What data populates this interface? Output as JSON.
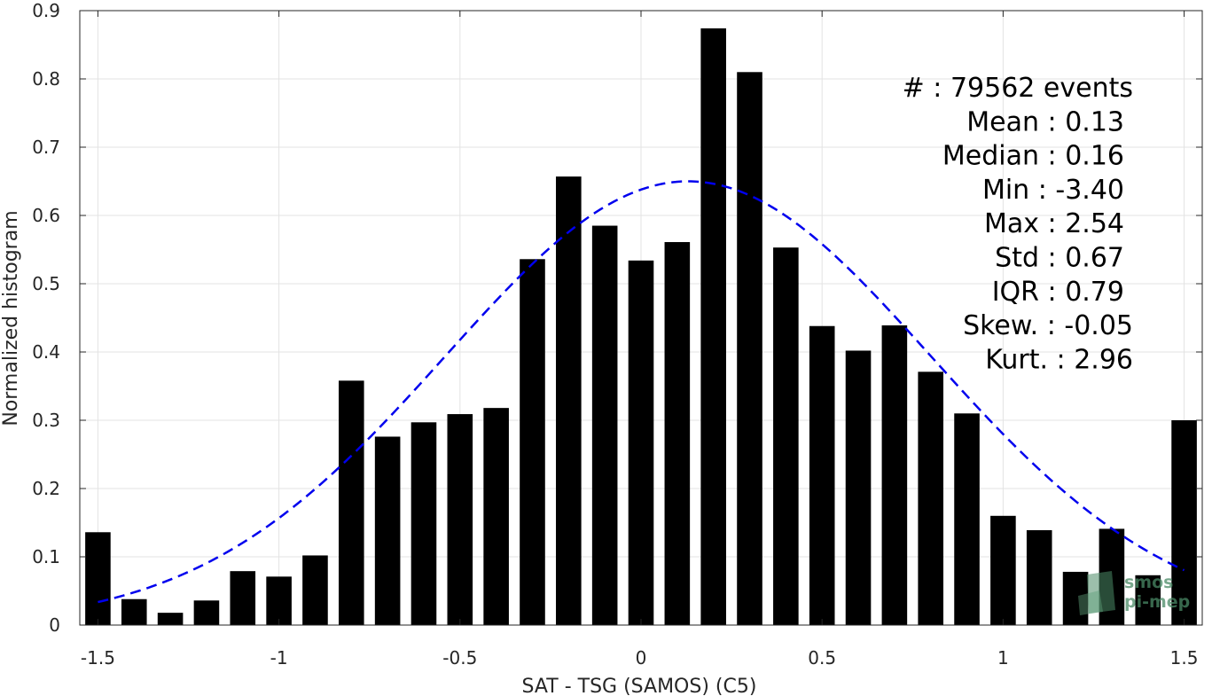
{
  "chart_data": {
    "type": "bar",
    "xlabel": "SAT - TSG (SAMOS) (C5)",
    "ylabel": "Normalized histogram",
    "xlim": [
      -1.55,
      1.55
    ],
    "ylim": [
      0,
      0.9
    ],
    "xticks": [
      -1.5,
      -1,
      -0.5,
      0,
      0.5,
      1,
      1.5
    ],
    "xtick_labels": [
      "-1.5",
      "-1",
      "-0.5",
      "0",
      "0.5",
      "1",
      "1.5"
    ],
    "yticks": [
      0,
      0.1,
      0.2,
      0.3,
      0.4,
      0.5,
      0.6,
      0.7,
      0.8,
      0.9
    ],
    "ytick_labels": [
      "0",
      "0.1",
      "0.2",
      "0.3",
      "0.4",
      "0.5",
      "0.6",
      "0.7",
      "0.8",
      "0.9"
    ],
    "grid": true,
    "bar_color": "#000000",
    "bar_width": 0.07,
    "bars": {
      "x": [
        -1.5,
        -1.4,
        -1.3,
        -1.2,
        -1.1,
        -1.0,
        -0.9,
        -0.8,
        -0.7,
        -0.6,
        -0.5,
        -0.4,
        -0.3,
        -0.2,
        -0.1,
        0.0,
        0.1,
        0.2,
        0.3,
        0.4,
        0.5,
        0.6,
        0.7,
        0.8,
        0.9,
        1.0,
        1.1,
        1.2,
        1.3,
        1.4,
        1.5
      ],
      "values": [
        0.136,
        0.038,
        0.018,
        0.036,
        0.079,
        0.071,
        0.102,
        0.358,
        0.276,
        0.297,
        0.309,
        0.318,
        0.536,
        0.657,
        0.585,
        0.534,
        0.561,
        0.874,
        0.81,
        0.553,
        0.438,
        0.402,
        0.439,
        0.371,
        0.31,
        0.16,
        0.139,
        0.078,
        0.141,
        0.073,
        0.3
      ]
    },
    "fit": {
      "type": "gaussian",
      "mean": 0.13,
      "std": 0.67,
      "peak": 0.65,
      "x_range": [
        -1.5,
        1.5
      ],
      "color": "#0000ee",
      "style": "dashed"
    },
    "stats": [
      {
        "text": "#  : 79562 events"
      },
      {
        "text": "Mean : 0.13"
      },
      {
        "text": "Median : 0.16"
      },
      {
        "text": "Min : -3.40"
      },
      {
        "text": "Max : 2.54"
      },
      {
        "text": "Std : 0.67"
      },
      {
        "text": "IQR : 0.79"
      },
      {
        "text": "Skew. : -0.05"
      },
      {
        "text": "Kurt. : 2.96"
      }
    ]
  },
  "logo": {
    "line1": "smos",
    "line2": "pi-mep",
    "color": "#4a8a66"
  }
}
